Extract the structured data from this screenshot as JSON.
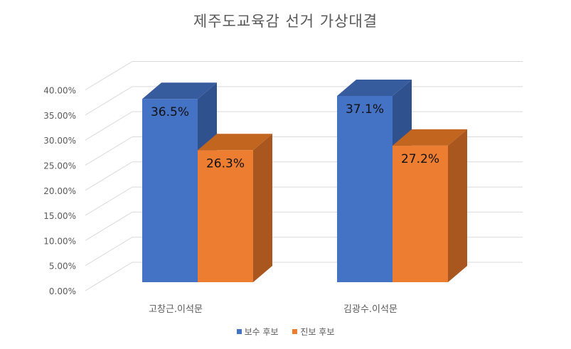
{
  "chart_data": {
    "type": "bar",
    "title": "제주도교육감 선거 가상대결",
    "categories": [
      "고창근.이석문",
      "김광수.이석문"
    ],
    "series": [
      {
        "name": "보수 후보",
        "values": [
          36.5,
          37.1
        ],
        "labels": [
          "36.5%",
          "37.1%"
        ]
      },
      {
        "name": "진보 후보",
        "values": [
          26.3,
          27.2
        ],
        "labels": [
          "26.3%",
          "27.2%"
        ]
      }
    ],
    "ylim": [
      0,
      40
    ],
    "yticks": [
      "0.00%",
      "5.00%",
      "10.00%",
      "15.00%",
      "20.00%",
      "25.00%",
      "30.00%",
      "35.00%",
      "40.00%"
    ],
    "grid": true,
    "legend_position": "bottom",
    "style": "3d-column"
  },
  "colors": {
    "series_front": [
      "#4472C4",
      "#ED7D31"
    ],
    "series_side": [
      "#2F528F",
      "#A9561F"
    ],
    "series_top": [
      "#365C9E",
      "#C2651F"
    ],
    "grid": "#D9D9D9",
    "text": "#595959"
  }
}
